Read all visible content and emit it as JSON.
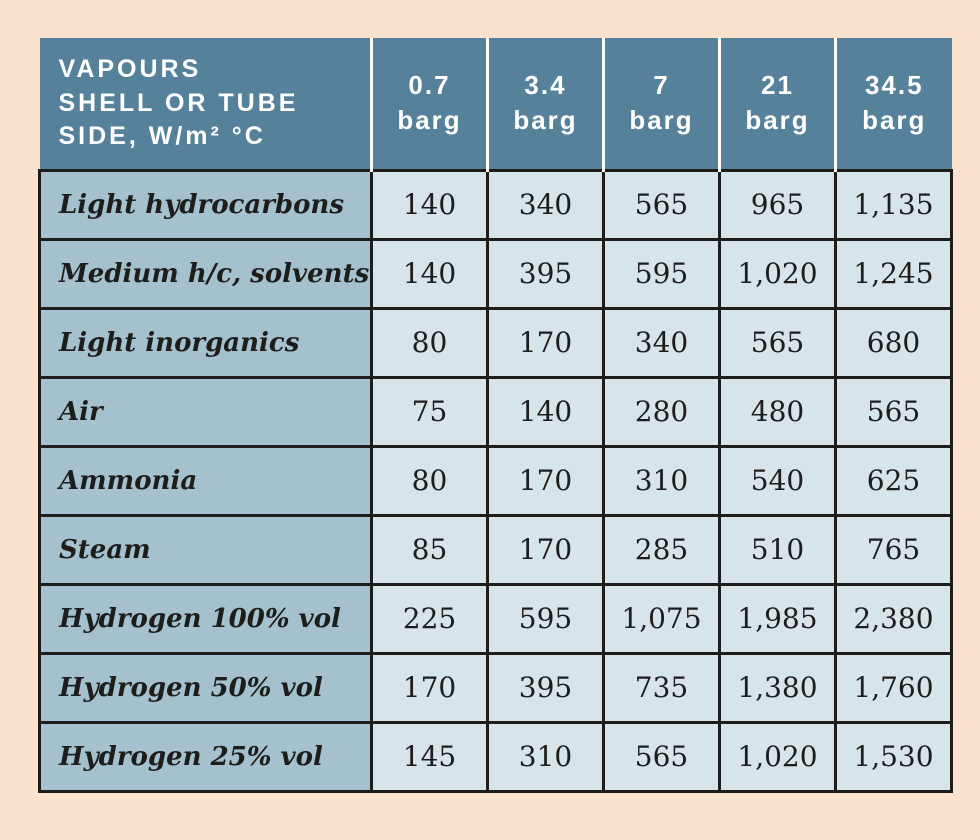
{
  "page": {
    "background_color": "#fbe2cf",
    "header_color": "#55819b",
    "label_column_color": "#a4c1cd",
    "value_cell_color": "#d7e4ea",
    "border_color": "#1d1d1b",
    "header_text_color": "#ffffff"
  },
  "table": {
    "title_lines": [
      "VAPOURS",
      "SHELL OR TUBE",
      "SIDE, W/m² °C"
    ],
    "columns": [
      {
        "value": "0.7",
        "unit": "barg"
      },
      {
        "value": "3.4",
        "unit": "barg"
      },
      {
        "value": "7",
        "unit": "barg"
      },
      {
        "value": "21",
        "unit": "barg"
      },
      {
        "value": "34.5",
        "unit": "barg"
      }
    ],
    "rows": [
      {
        "label": "Light hydrocarbons",
        "values": [
          "140",
          "340",
          "565",
          "965",
          "1,135"
        ]
      },
      {
        "label": "Medium h/c, solvents",
        "values": [
          "140",
          "395",
          "595",
          "1,020",
          "1,245"
        ]
      },
      {
        "label": "Light inorganics",
        "values": [
          "80",
          "170",
          "340",
          "565",
          "680"
        ]
      },
      {
        "label": "Air",
        "values": [
          "75",
          "140",
          "280",
          "480",
          "565"
        ]
      },
      {
        "label": "Ammonia",
        "values": [
          "80",
          "170",
          "310",
          "540",
          "625"
        ]
      },
      {
        "label": "Steam",
        "values": [
          "85",
          "170",
          "285",
          "510",
          "765"
        ]
      },
      {
        "label": "Hydrogen 100% vol",
        "values": [
          "225",
          "595",
          "1,075",
          "1,985",
          "2,380"
        ]
      },
      {
        "label": "Hydrogen 50% vol",
        "values": [
          "170",
          "395",
          "735",
          "1,380",
          "1,760"
        ]
      },
      {
        "label": "Hydrogen 25% vol",
        "values": [
          "145",
          "310",
          "565",
          "1,020",
          "1,530"
        ]
      }
    ]
  },
  "chart_data": {
    "type": "table",
    "title": "VAPOURS SHELL OR TUBE SIDE, W/m² °C",
    "columns": [
      "0.7 barg",
      "3.4 barg",
      "7 barg",
      "21 barg",
      "34.5 barg"
    ],
    "rows": [
      {
        "label": "Light hydrocarbons",
        "values": [
          140,
          340,
          565,
          965,
          1135
        ]
      },
      {
        "label": "Medium h/c, solvents",
        "values": [
          140,
          395,
          595,
          1020,
          1245
        ]
      },
      {
        "label": "Light inorganics",
        "values": [
          80,
          170,
          340,
          565,
          680
        ]
      },
      {
        "label": "Air",
        "values": [
          75,
          140,
          280,
          480,
          565
        ]
      },
      {
        "label": "Ammonia",
        "values": [
          80,
          170,
          310,
          540,
          625
        ]
      },
      {
        "label": "Steam",
        "values": [
          85,
          170,
          285,
          510,
          765
        ]
      },
      {
        "label": "Hydrogen 100% vol",
        "values": [
          225,
          595,
          1075,
          1985,
          2380
        ]
      },
      {
        "label": "Hydrogen 50% vol",
        "values": [
          170,
          395,
          735,
          1380,
          1760
        ]
      },
      {
        "label": "Hydrogen 25% vol",
        "values": [
          145,
          310,
          565,
          1020,
          1530
        ]
      }
    ],
    "units": "W/m² °C",
    "pressure_values_barg": [
      0.7,
      3.4,
      7,
      21,
      34.5
    ]
  }
}
